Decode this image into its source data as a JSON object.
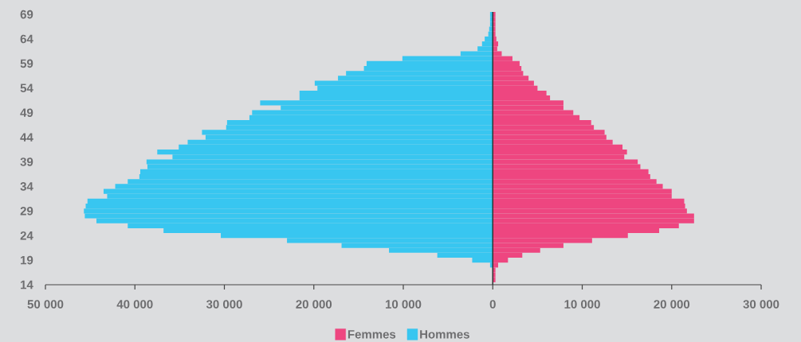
{
  "chart_data": {
    "type": "bar",
    "orientation": "horizontal",
    "categories": [
      "69",
      null,
      null,
      null,
      null,
      "64",
      null,
      null,
      null,
      null,
      "59",
      null,
      null,
      null,
      null,
      "54",
      null,
      null,
      null,
      null,
      "49",
      null,
      null,
      null,
      null,
      "44",
      null,
      null,
      null,
      null,
      "39",
      null,
      null,
      null,
      null,
      "34",
      null,
      null,
      null,
      null,
      "29",
      null,
      null,
      null,
      null,
      "24",
      null,
      null,
      null,
      null,
      "19",
      null,
      null,
      null,
      null,
      "14"
    ],
    "series": [
      {
        "name": "Femmes",
        "color": "#ee4680",
        "values": [
          300,
          300,
          300,
          300,
          300,
          400,
          600,
          500,
          1000,
          2200,
          3000,
          3200,
          3400,
          4000,
          4600,
          5000,
          6000,
          6400,
          7900,
          7900,
          9000,
          9700,
          11000,
          11300,
          12500,
          12700,
          13400,
          14500,
          15000,
          14700,
          16200,
          16500,
          17400,
          17600,
          18300,
          19000,
          20000,
          20000,
          21400,
          21500,
          21700,
          22500,
          22500,
          20800,
          18600,
          15100,
          11100,
          7900,
          5300,
          3300,
          1700,
          600,
          300,
          300,
          300,
          null
        ]
      },
      {
        "name": "Hommes",
        "color": "#38c6f0",
        "values": [
          -300,
          -300,
          -300,
          -400,
          -500,
          -900,
          -1200,
          -1700,
          -3600,
          -10100,
          -14100,
          -14400,
          -16400,
          -17300,
          -19900,
          -19600,
          -21600,
          -21600,
          -26000,
          -23700,
          -26900,
          -27200,
          -29700,
          -29800,
          -32500,
          -32100,
          -34100,
          -35100,
          -37500,
          -35800,
          -38700,
          -38600,
          -39400,
          -39500,
          -40800,
          -42200,
          -43500,
          -43100,
          -45300,
          -45500,
          -45700,
          -45600,
          -44300,
          -40800,
          -36800,
          -30400,
          -23000,
          -16900,
          -11600,
          -6200,
          -2300,
          -300,
          null,
          null,
          null,
          null
        ]
      }
    ],
    "xlim": [
      -50000,
      30000
    ],
    "xticks": [
      {
        "value": -50000,
        "label": "50 000"
      },
      {
        "value": -40000,
        "label": "40 000"
      },
      {
        "value": -30000,
        "label": "30 000"
      },
      {
        "value": -20000,
        "label": "20 000"
      },
      {
        "value": -10000,
        "label": "10 000"
      },
      0,
      {
        "value": 10000,
        "label": "10 000"
      },
      {
        "value": 20000,
        "label": "20 000"
      },
      {
        "value": 30000,
        "label": "30 000"
      }
    ],
    "ref_lines": [
      {
        "axis": "x",
        "value": 0,
        "color": "#333333"
      }
    ],
    "stacked": true,
    "grid": false,
    "legend": "bottom"
  }
}
